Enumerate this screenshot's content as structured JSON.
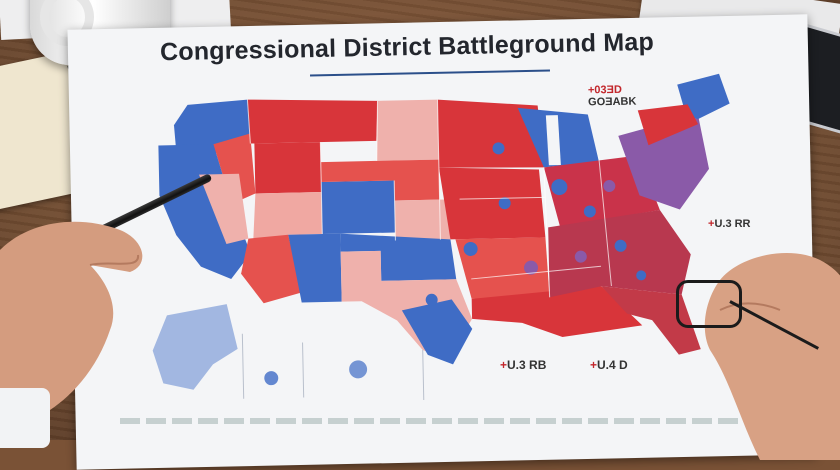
{
  "title": "Congressional District Battleground Map",
  "legend": {
    "top_line1": "+03ƎD",
    "top_line2": "GOƎABK",
    "right_prefix": "+",
    "right_text": "U.3 RR",
    "bottom1_prefix": "+",
    "bottom1_text": "U.3 RB",
    "bottom2_prefix": "+",
    "bottom2_text": "U.4 D"
  },
  "colors": {
    "republican": "#d8353a",
    "democrat": "#3f6cc5",
    "lean_republican": "#efb1ac",
    "purple": "#8a5aa8",
    "paper": "#f4f5f7",
    "desk": "#7a5236"
  }
}
